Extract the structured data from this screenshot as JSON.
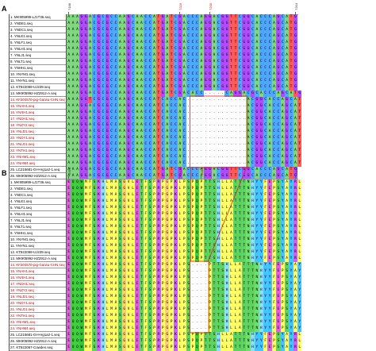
{
  "panels": [
    {
      "label": "A",
      "position_labels": [
        "7188",
        "7216",
        "7239",
        "7264"
      ],
      "position_label_colors": [
        "#333333",
        "#d00000",
        "#d00000",
        "#333333"
      ],
      "sequences": [
        {
          "label": "1. MK905999-LJ1T36.seq",
          "red": false
        },
        {
          "label": "2. YNDE1.seq",
          "red": false
        },
        {
          "label": "3. YNDC1.seq",
          "red": false
        },
        {
          "label": "4. YNLE1.seq",
          "red": false
        },
        {
          "label": "5. YNLF1.seq",
          "red": false
        },
        {
          "label": "6. YNLH1.seq",
          "red": false
        },
        {
          "label": "7. YNLJ1.seq",
          "red": false
        },
        {
          "label": "8. YNLT1.seq",
          "red": false
        },
        {
          "label": "9. YNHH1.seq",
          "red": false
        },
        {
          "label": "10. YNYM1.seq",
          "red": false
        },
        {
          "label": "11. YNYN1.seq",
          "red": false
        },
        {
          "label": "12. KT922069-UJ239.seq",
          "red": false
        },
        {
          "label": "13. MK905992-HZ2912-A.seq",
          "red": false
        },
        {
          "label": "14. KF204570-pig-Gansu-CHN.seq",
          "red": true
        },
        {
          "label": "15. YNAH1.seq",
          "red": true
        },
        {
          "label": "16. YNXH1.seq",
          "red": true
        },
        {
          "label": "17. YNDH1.seq",
          "red": true
        },
        {
          "label": "18. YNZY2.seq",
          "red": true
        },
        {
          "label": "19. YNLD1.seq",
          "red": true
        },
        {
          "label": "20. YNDY1.seq",
          "red": true
        },
        {
          "label": "21. YNLG1.seq",
          "red": true
        },
        {
          "label": "22. YNTH1.seq",
          "red": true
        },
        {
          "label": "23. YNHW1.seq",
          "red": true
        },
        {
          "label": "24. YNHM4.seq",
          "red": true
        },
        {
          "label": "25. LC215681-GH-Hg1a2-1.seq",
          "red": false
        },
        {
          "label": "26. MK905992-HZ2912-A.seq",
          "red": false
        },
        {
          "label": "27. KT922067-Cowden.seq",
          "red": false
        }
      ],
      "alignment": [
        "AAAGGACGCGCCAAGCAACCATGATCGACCCAGGACGGTTCGGCACCCAGCATG",
        "AAAGGACGCGCCAAGCAACCATGATCGACCCAGGACGGTTCGGCACCCAGCATG",
        "AAAGGACGCGCCAAGCAACCATGATCGACCCAGGACGGTTCGGCACCCAGCATG",
        "AAAGGACGCGCCAAGCAACCATGATCGACCCAGGACGGTTCGGCACCCAGCATG",
        "AAAGGACGCGCCAAGCAACCATGATCGACCCAGGACGGTTCGGCACCCAGCATG",
        "AAAGGACGCGCCAAGCAACCATGATCGACCCAGGACGGTTCGGCACCCAGCATG",
        "AAAGGACGCGCCAAGCAACCATGATCGACCCAGGACGGTTCGGCACCCAGCATG",
        "AAAGGACGCGCCAAGCAACCATGATCGACCCAGGACGGTTCGGCACCCAGCATG",
        "AAAGGACGCGCCAAGCAACCATGATCGACCCAGGACGGTTCGGCACCCAGCATG",
        "AAAGGACGCGCCAAGCAACCATGATCGACCCAGGACGGTTCGGCACCCAGCATG",
        "AAAGGACGCGCCAAGCAACCATGATCGACCCAGGACGGTTCGGCACCCAGCATG",
        "AAAGGACGCGCCAAGCAACCATGATCGACCCAGGACGGTTCGGCACCCAGCATG",
        "AAAGGACGCGCCAAGCAACCATGATCGACACC-----CAGGACGCACCCAGCATG",
        "AAAGGTCGCGCCAAGCAACCATCACCAC--------------ACGGCACCAGCAT",
        "AAAGGACGCGCCAAGCAACCATCACCAC--------------ACGGCACCAGCAT",
        "AAAGGACGCGCCAAGCAACCATCACCAC--------------ACGGCACCAGCAT",
        "AAAGGACGCGCCAAGCAACCATCACCAC--------------ACGGCACCAGCAT",
        "AAAGGACGCGCCAAGCAACCATCACCAC--------------ACGGCACCAGCAT",
        "AAAGGACGCGCCAAGCAACCATCACCAC--------------ACGGCACCAGCAT",
        "AAAGGACGCGCCAAGCAACCATCACCAC--------------ACGGCACCAGCAT",
        "AAAGGACGCGCCAAGCAACCATCACCAC--------------ACGGCACCAGCAT",
        "AAAGGACGCGCCAAGCAACCATCACCAC--------------ACGGCACCAGCAT",
        "AAAGGACGCGCCAAGCAACCATCACCAC--------------ACGGCACCAGCAT",
        "AAAGGACGCGCCAAGCAACCATCACCAC--------------ACGGCACCAGCAT",
        "AAAGGACGCGCCAAGCAACCATGATCGACCCAGGACGGTTCGGCACCCAGCATG",
        "AAAGGACGCGCCAAGCAACCATGATCGACCCAGGACGGTTCGGCACCCAGCATG",
        "AAAGGACGCGCCAAGCAACCATGATCGACCCAGGACGGTTCGGCACCCAGCATG"
      ]
    },
    {
      "label": "B",
      "position_labels": [
        "2394",
        "2404",
        "2413",
        "2444"
      ],
      "position_label_colors": [
        "#333333",
        "#d00000",
        "#d00000",
        "#333333"
      ],
      "sequences": [
        {
          "label": "1. MK905999-LJ1T36.seq",
          "red": false
        },
        {
          "label": "2. YNDE1.seq",
          "red": false
        },
        {
          "label": "3. YNDC1.seq",
          "red": false
        },
        {
          "label": "4. YNLE1.seq",
          "red": false
        },
        {
          "label": "5. YNLF1.seq",
          "red": false
        },
        {
          "label": "6. YNLH1.seq",
          "red": false
        },
        {
          "label": "7. YNLJ1.seq",
          "red": false
        },
        {
          "label": "8. YNLT1.seq",
          "red": false
        },
        {
          "label": "9. YNHH1.seq",
          "red": false
        },
        {
          "label": "10. YNYM1.seq",
          "red": false
        },
        {
          "label": "11. YNYN1.seq",
          "red": false
        },
        {
          "label": "12. KT922069-UJ239.seq",
          "red": false
        },
        {
          "label": "13. MK905992-HZ2912-A.seq",
          "red": false
        },
        {
          "label": "14. KF204570-pig-Gansu-CHN.seq",
          "red": true
        },
        {
          "label": "15. YNAH1.seq",
          "red": true
        },
        {
          "label": "16. YNXH1.seq",
          "red": true
        },
        {
          "label": "17. YNDH1.seq",
          "red": true
        },
        {
          "label": "18. YNZY2.seq",
          "red": true
        },
        {
          "label": "19. YNLD1.seq",
          "red": true
        },
        {
          "label": "20. YNDY1.seq",
          "red": true
        },
        {
          "label": "21. YNLG1.seq",
          "red": true
        },
        {
          "label": "22. YNTH1.seq",
          "red": true
        },
        {
          "label": "23. YNHW1.seq",
          "red": true
        },
        {
          "label": "24. YNHM4.seq",
          "red": true
        },
        {
          "label": "25. LC215681-GH-Hg1a2-1.seq",
          "red": false
        },
        {
          "label": "26. MK905992-HZ2912-A.seq",
          "red": false
        },
        {
          "label": "27. KT922067-Cowden.seq",
          "red": false
        }
      ],
      "alignment": [
        "EQQWMFSKHLMASGVLETFSPRPGPKLPSPQPTTSHLLATTTNHYYFEPSYAYRL",
        "EQQWMFSKHLMASGVLETFSPRPGPKLPSPQPTTSHLLATTTNHYYFEPSYAYRL",
        "EQQWMFSKHLMASGVLETFSPRPGPKLPSPQPTTSHLLATTTNHYYFEPSYAYRL",
        "EQQWMFSKHLMASGVLETFSPRPGPKLPSPQPTTSHLLATTTNHYYFEPSYAYRL",
        "EQQWMFSKHLMASGVLETFSPRPGPKLPSPQPTTSHLLATTTNHYYFEPSYAYRL",
        "EQQWMFSKHLMASGVLETFSPRPGPKLPSPQPTTSHLLATTTNHYYFEPSYAYRL",
        "EQQWMFSKHLMASGVLETFSPRPGPKLPSPQPTTSHLLATTTNHYYFEPSYAYRL",
        "EQQWMFSKHLMASGVLETFSPRPGPKLPSPQPTTSHLLATTTNHYYFEPSYAYRL",
        "EQQWMFSKHLMASGVLETFSPRPGPKLPSPQPTTSHLLATTTNHYYFEPSYAYRL",
        "EQQWMFSKHLMASGVLETFSPRPGPKLPSPQPTTSHLLATTTNHYYFEPSYAYRL",
        "EQQWMFSKHLMASGVLETFSPRPGPKLPSPQPTTSHLLATTTNHYYFEPSYAYRL",
        "EQQWMFSKHLMASGVLETFSPRPGPKLPSPQPTTSHLLATTTNHYYFEPSYAYRL",
        "EQQWMFSKHLMASGVLETFSPRPGPKLPSPQPTTSHLLATTTNHYYFEPSYAYRL",
        "EQQWMFSKHLMASGVLETFSPRPGPKLPS----PTTSHLLATTTNHYYFEPSYAY",
        "EQQWMFSKHLMASGVLETFSPRPGPKLPS----PTTSHLLATTTNHYYFEPSYAY",
        "EQQWMFSKHLMASGVLETFSPRPGPKLPS----PTTSHLLATTTNHYYFEPSYAY",
        "EQQWMFSKHLMASGVLETFSPRPGPKLPS----PTTSHLLATTTNHYYFEPSYAY",
        "EQQWMFSKHLMASGVLETFSPRPGPKLPS----PTTSHLLATTTNHYYFEPSYAY",
        "EQQWMFSKHLMASGVLETFSPRPGPKLPS----PTTSHLLATTTNHYYFEPSYAY",
        "EQQWMFSKHLMASGVLETFSPRPGPKLPS----PTTSHLLATTTNHYYFEPSYAY",
        "EQQWMFSKHLMASGVLETFSPRPGPKLPS----PTTSHLLATTTNHYYFEPSYAY",
        "EQQWMFSKHLMASGVLETFSPRPGPKLPS----PTTSHLLATTTNHYYFEPSYAY",
        "EQQWMFSKHLMASGVLETFSPRPGPKLPS----PTTSHLLATTTNHYYFEPSYAY",
        "EQQWMFSKHLMASGVLETFSPRPGPKLPS----PTTSHLLATTTNHYYFEPSYAY",
        "EQQWMFSKHLMASGVLETFSPRPGPKLPSPQPTTSHLLATTTNHYYFEPSYAYRL",
        "EQQWMFSKHLMASGVLETFSPRPGPKLPSPQPTTSHLLATTTNHYYFEPSYAYRL",
        "EQQWMFSKHLMASGVLETFSPRPGPKLPSPQPTTSHLLATTTNHYYFEPSYAYRL"
      ]
    }
  ],
  "colors": {
    "nucleotide": {
      "A": "#7fd77f",
      "C": "#4fa8ff",
      "G": "#b04cff",
      "T": "#ff5a5a",
      "-": "#ffffff"
    },
    "amino_acid": {
      "E": "#e060e0",
      "Q": "#3fcf3f",
      "W": "#37c437",
      "M": "#ffff66",
      "F": "#ffff66",
      "S": "#5fd35f",
      "K": "#d060ff",
      "H": "#8be0ff",
      "L": "#ffff66",
      "A": "#ffff66",
      "G": "#ffcf70",
      "V": "#ffff66",
      "T": "#5fd35f",
      "P": "#ffff66",
      "R": "#d060ff",
      "N": "#6fe06f",
      "Y": "#45c4ff",
      "I": "#ffff66",
      "D": "#e060e0",
      "C": "#ffff66",
      "-": "#ffffff"
    },
    "deletion_box": "#e02020",
    "connector": "#e02020"
  }
}
